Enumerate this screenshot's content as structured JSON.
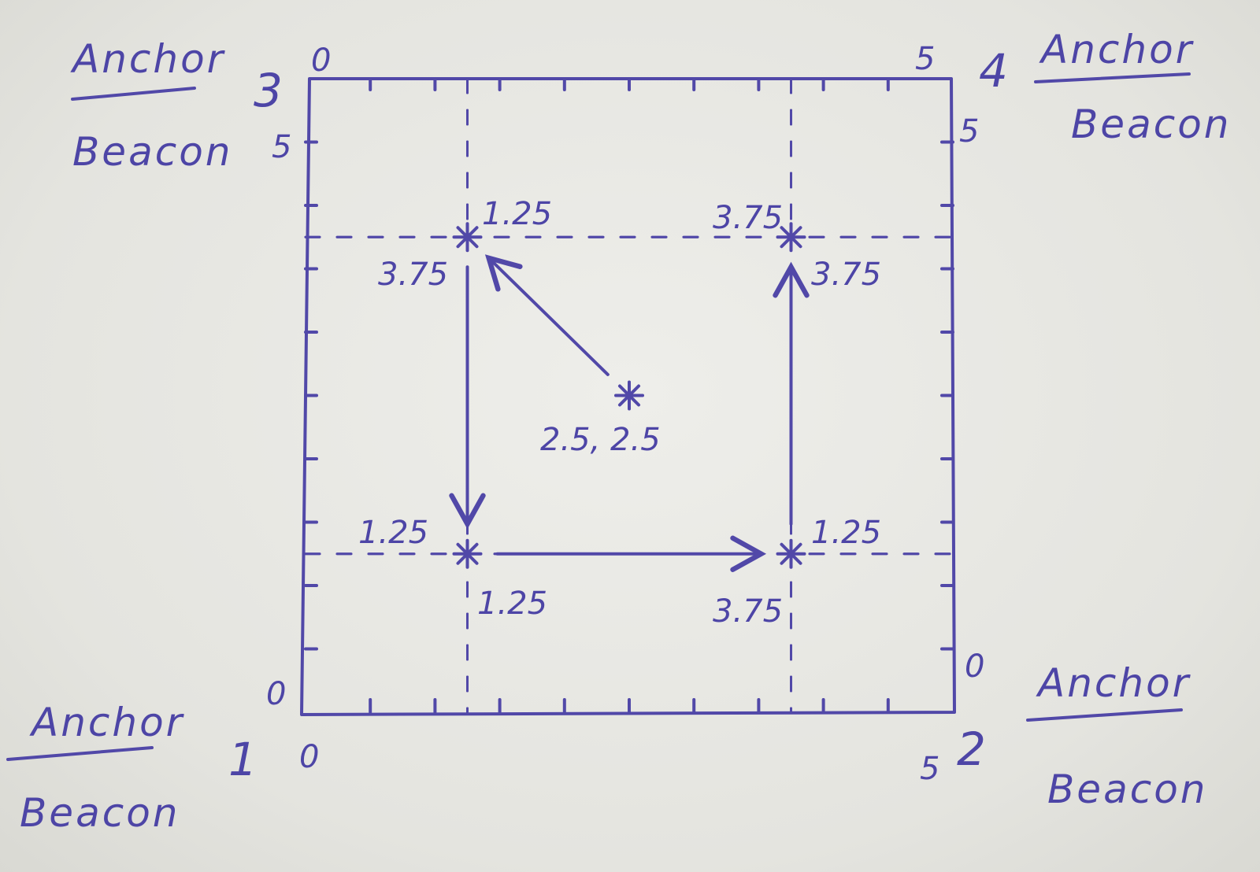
{
  "colors": {
    "ink": "#5148a8",
    "paper": "#e6e6e1"
  },
  "anchors": [
    {
      "number": "1",
      "top": "Anchor",
      "bottom": "Beacon"
    },
    {
      "number": "2",
      "top": "Anchor",
      "bottom": "Beacon"
    },
    {
      "number": "3",
      "top": "Anchor",
      "bottom": "Beacon"
    },
    {
      "number": "4",
      "top": "Anchor",
      "bottom": "Beacon"
    }
  ],
  "axis_labels": {
    "bottom_left_x": "0",
    "bottom_left_y": "0",
    "bottom_right_x": "5",
    "bottom_right_y": "0",
    "top_left_x": "0",
    "top_left_y": "5",
    "top_right_x": "5",
    "top_right_y": "5"
  },
  "waypoints": [
    {
      "x": 2.5,
      "y": 2.5,
      "label": "2.5, 2.5"
    },
    {
      "x": 1.25,
      "y": 3.75,
      "label_x": "1.25",
      "label_y": "3.75"
    },
    {
      "x": 1.25,
      "y": 1.25,
      "label_x": "1.25",
      "label_y": "1.25"
    },
    {
      "x": 3.75,
      "y": 1.25,
      "label_x": "3.75",
      "label_y": "1.25"
    },
    {
      "x": 3.75,
      "y": 3.75,
      "label_x": "3.75",
      "label_y": "3.75"
    }
  ],
  "path": [
    {
      "from": 0,
      "to": 1
    },
    {
      "from": 1,
      "to": 2
    },
    {
      "from": 2,
      "to": 3
    },
    {
      "from": 3,
      "to": 4
    }
  ]
}
